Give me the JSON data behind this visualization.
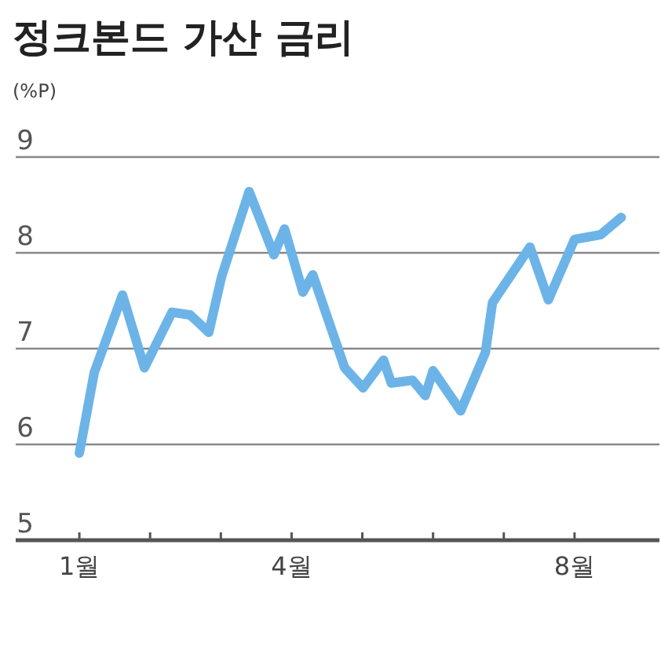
{
  "chart_data": {
    "type": "line",
    "title": "정크본드 가산 금리",
    "ylabel": "(%P)",
    "x": [
      1,
      1.21,
      1.61,
      1.92,
      2.31,
      2.57,
      2.83,
      3.01,
      3.4,
      3.75,
      3.9,
      4.16,
      4.3,
      4.75,
      5.01,
      5.3,
      5.41,
      5.71,
      5.89,
      6,
      6.39,
      6.74,
      6.84,
      7.37,
      7.63,
      8,
      8.37,
      8.66
    ],
    "series": [
      {
        "color": "#6cb4e8",
        "values": [
          5.91,
          6.75,
          7.56,
          6.8,
          7.38,
          7.35,
          7.17,
          7.75,
          8.64,
          7.98,
          8.25,
          7.59,
          7.77,
          6.8,
          6.59,
          6.88,
          6.64,
          6.67,
          6.51,
          6.77,
          6.35,
          6.96,
          7.48,
          8.06,
          7.51,
          8.14,
          8.19,
          8.37
        ]
      }
    ],
    "xlim": [
      0.1,
      9.2
    ],
    "xticks": [
      {
        "value": 1,
        "label": "1월"
      },
      {
        "value": 2,
        "label": null
      },
      {
        "value": 3,
        "label": null
      },
      {
        "value": 4,
        "label": "4월"
      },
      {
        "value": 5,
        "label": null
      },
      {
        "value": 6,
        "label": null
      },
      {
        "value": 7,
        "label": null
      },
      {
        "value": 8,
        "label": "8월"
      }
    ],
    "ylim": [
      5,
      9
    ],
    "yticks": [
      5,
      6,
      7,
      8,
      9
    ],
    "grid": "y",
    "marker": "none",
    "line_style": "solid"
  }
}
